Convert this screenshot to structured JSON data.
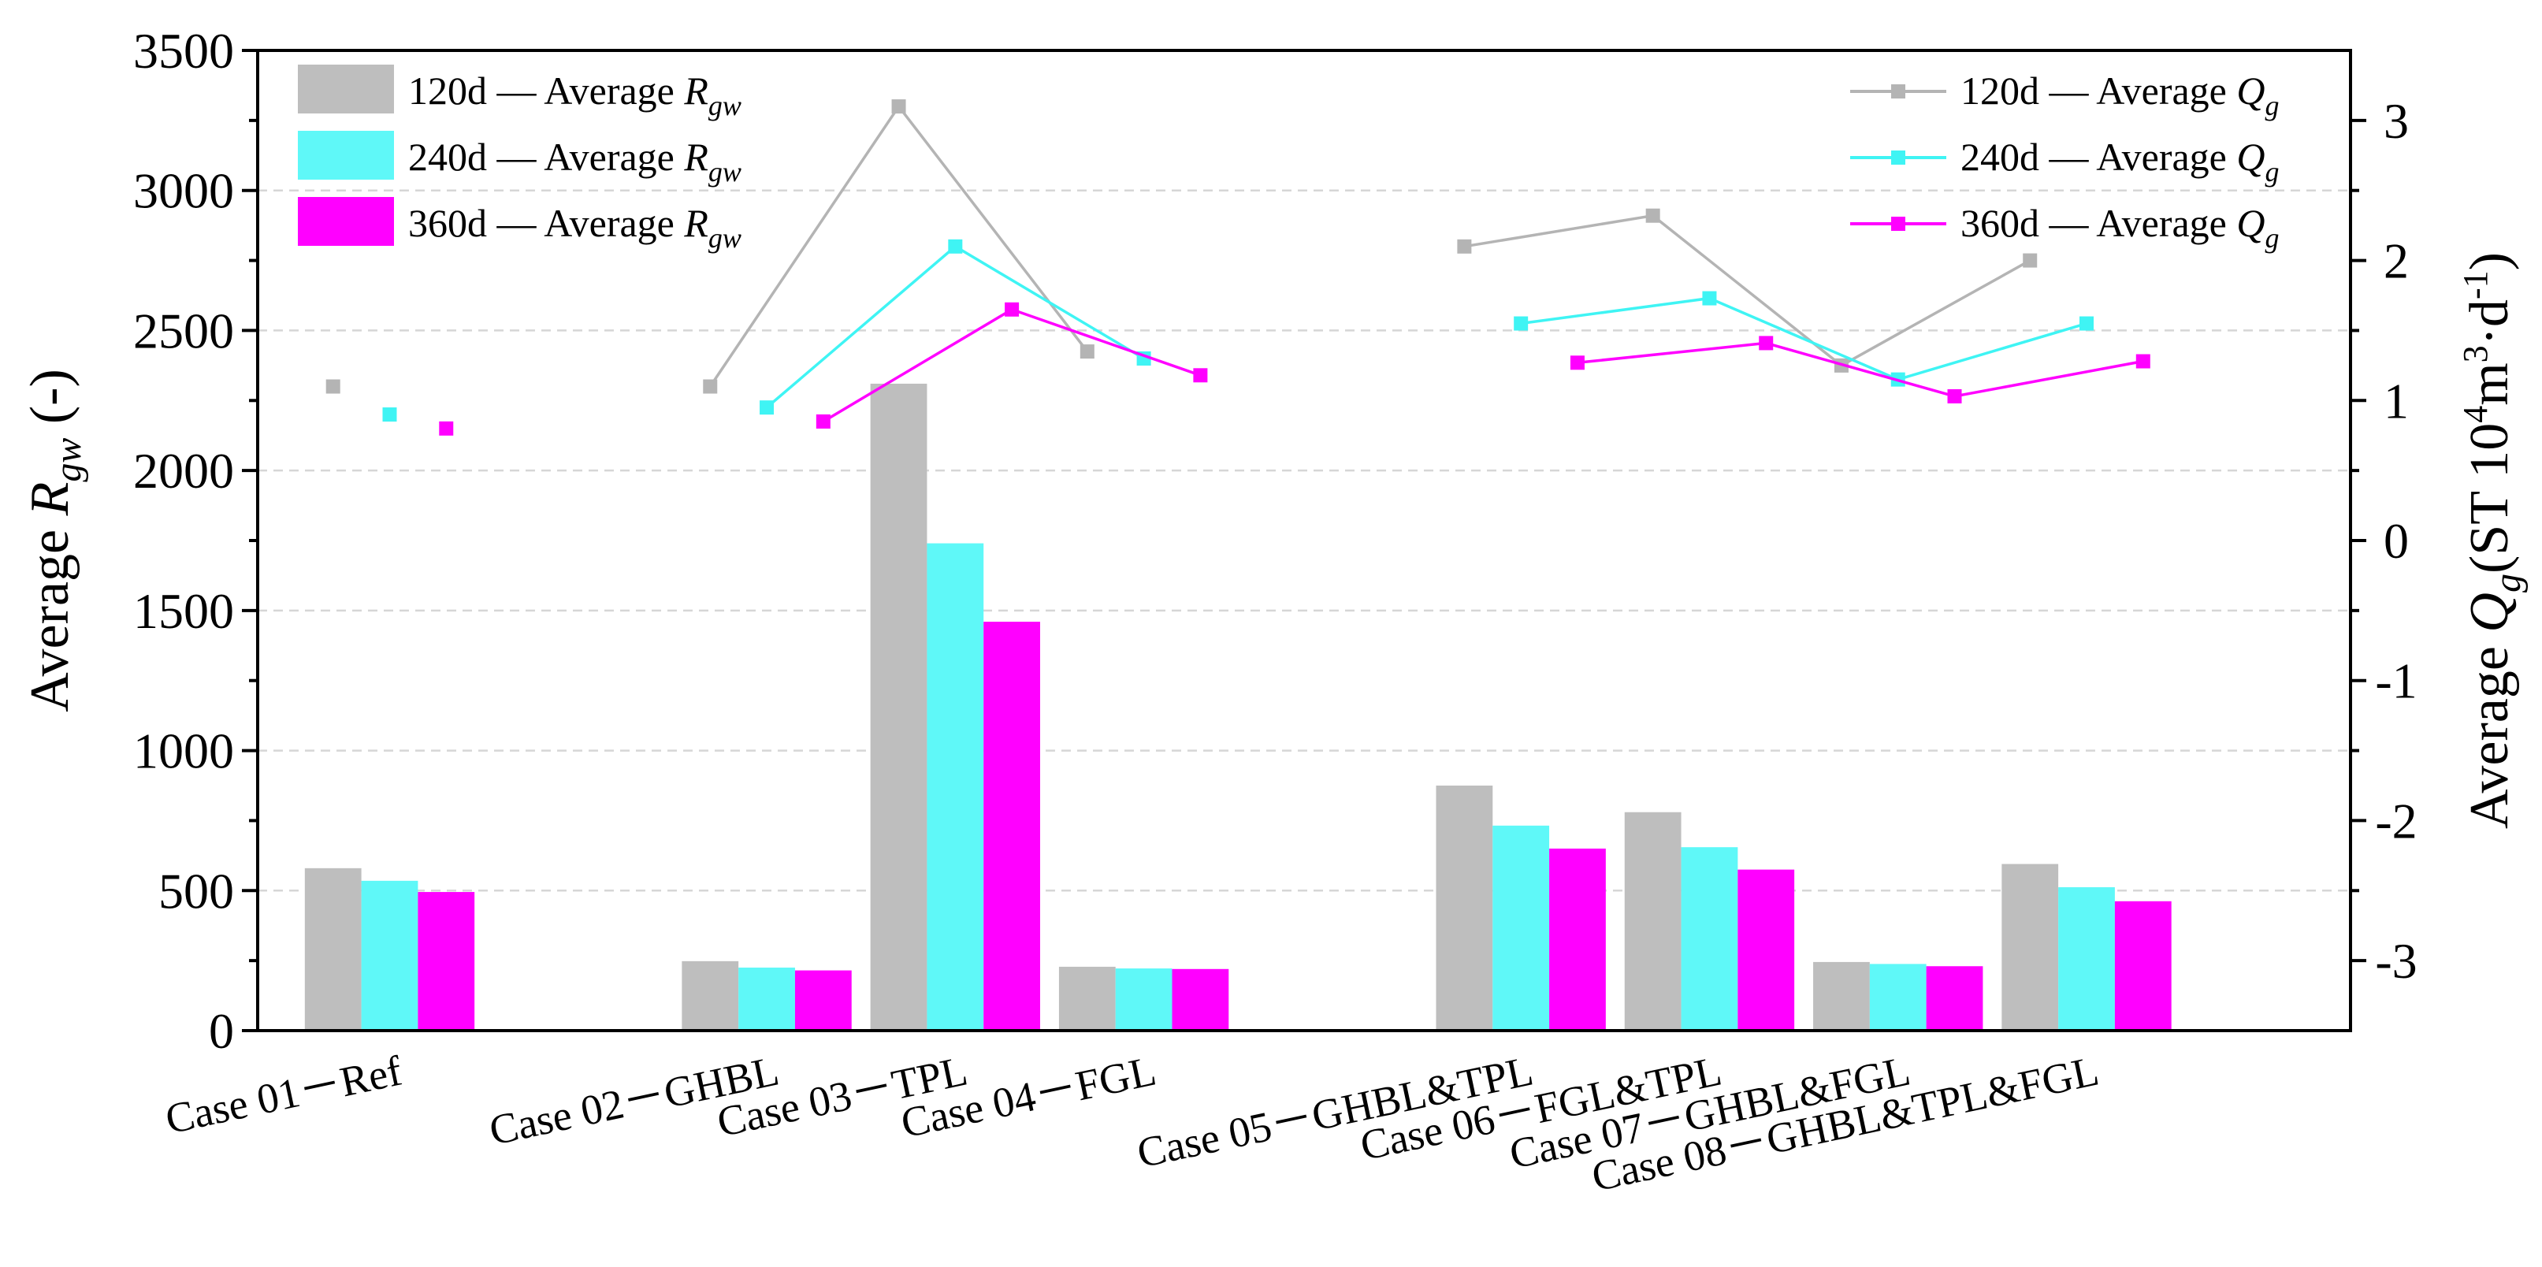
{
  "chart_data": {
    "type": "bar",
    "categories": [
      "Case 01－Ref",
      "Case 02－GHBL",
      "Case 03－TPL",
      "Case 04－FGL",
      "Case 05－GHBL&TPL",
      "Case 06－FGL&TPL",
      "Case 07－GHBL&FGL",
      "Case 08－GHBL&TPL&FGL"
    ],
    "category_slots": [
      1,
      3,
      4,
      5,
      7,
      8,
      9,
      10
    ],
    "xlim": [
      0.3,
      11.4
    ],
    "left_axis": {
      "label_prefix": "Average ",
      "label_var": "R",
      "label_sub": "gw",
      "label_suffix": " (-)",
      "ylim": [
        0,
        3500
      ],
      "ticks": [
        0,
        500,
        1000,
        1500,
        2000,
        2500,
        3000,
        3500
      ],
      "tick_labels": [
        "0",
        "500",
        "1000",
        "1500",
        "2000",
        "2500",
        "3000",
        "3500"
      ]
    },
    "right_axis": {
      "label_prefix": "Average ",
      "label_var": "Q",
      "label_sub": "g",
      "label_unit_a": "(ST 10",
      "label_sup_a": "4",
      "label_unit_b": "m",
      "label_sup_b": "3",
      "label_unit_c": "·d",
      "label_sup_c": "-1",
      "label_unit_d": ")",
      "ylim": [
        -3.5,
        3.5
      ],
      "ticks": [
        -3,
        -2,
        -1,
        0,
        1,
        2,
        3
      ],
      "tick_labels": [
        "-3",
        "-2",
        "-1",
        "0",
        "1",
        "2",
        "3"
      ]
    },
    "bar_series": [
      {
        "name": "120d",
        "legend_mid": " — Average ",
        "legend_var": "R",
        "legend_sub": "gw",
        "color": "#bebebe",
        "values": [
          580,
          248,
          2310,
          228,
          875,
          780,
          245,
          595
        ]
      },
      {
        "name": "240d",
        "legend_mid": " — Average ",
        "legend_var": "R",
        "legend_sub": "gw",
        "color": "#5ff8f8",
        "values": [
          535,
          225,
          1740,
          222,
          732,
          655,
          238,
          512
        ]
      },
      {
        "name": "360d",
        "legend_mid": " — Average ",
        "legend_var": "R",
        "legend_sub": "gw",
        "color": "#ff00ff",
        "values": [
          495,
          215,
          1460,
          220,
          650,
          575,
          230,
          462
        ]
      }
    ],
    "line_series": [
      {
        "name": "120d",
        "legend_mid": " — Average ",
        "legend_var": "Q",
        "legend_sub": "g",
        "color": "#b4b4b4",
        "values": [
          1.1,
          1.1,
          3.1,
          1.35,
          2.1,
          2.32,
          1.25,
          2.0
        ],
        "segments": [
          [
            1,
            2,
            3
          ],
          [
            4,
            5,
            6,
            7
          ]
        ]
      },
      {
        "name": "240d",
        "legend_mid": " — Average ",
        "legend_var": "Q",
        "legend_sub": "g",
        "color": "#3ff4f4",
        "values": [
          0.9,
          0.95,
          2.1,
          1.3,
          1.55,
          1.73,
          1.15,
          1.55
        ],
        "segments": [
          [
            1,
            2,
            3
          ],
          [
            4,
            5,
            6,
            7
          ]
        ]
      },
      {
        "name": "360d",
        "legend_mid": " — Average ",
        "legend_var": "Q",
        "legend_sub": "g",
        "color": "#ff00ff",
        "values": [
          0.8,
          0.85,
          1.65,
          1.18,
          1.27,
          1.41,
          1.03,
          1.28
        ],
        "segments": [
          [
            1,
            2,
            3
          ],
          [
            4,
            5,
            6,
            7
          ]
        ]
      }
    ],
    "grid": "horizontal dashed",
    "legend_bars_position": "top-left",
    "legend_lines_position": "top-right"
  }
}
